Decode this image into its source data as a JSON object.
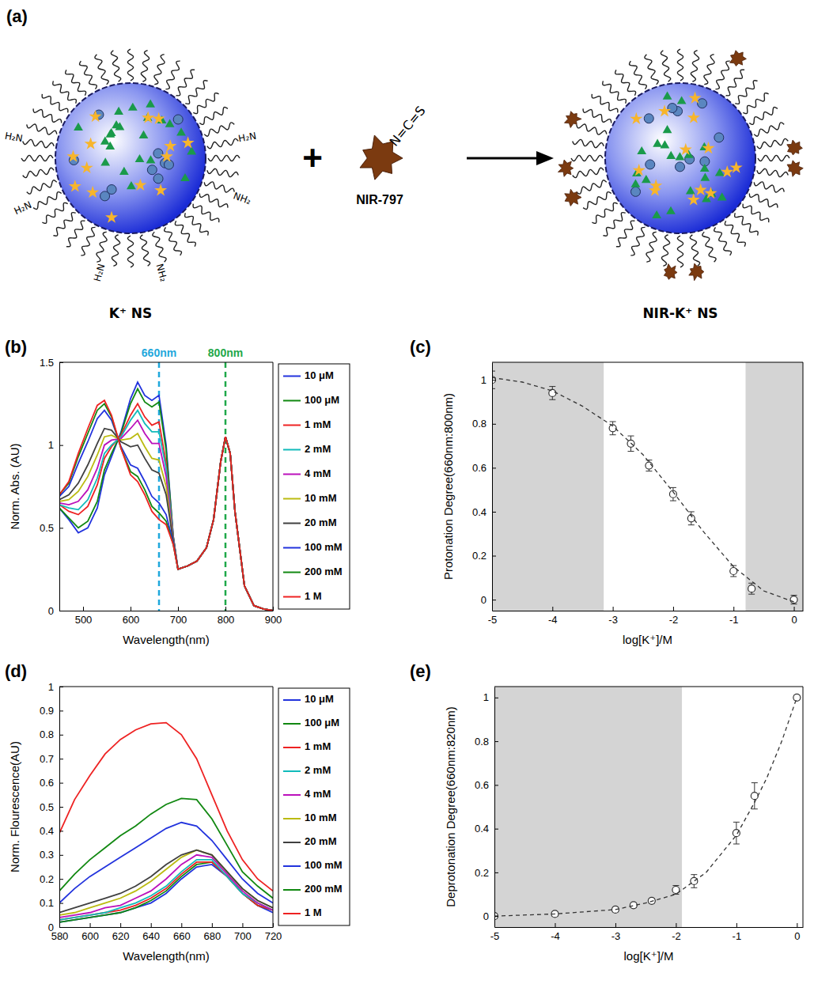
{
  "diagram": {
    "panel_label": "(a)",
    "left_label": "K⁺ NS",
    "right_label": "NIR-K⁺ NS",
    "dye_label": "NIR-797",
    "dye_group": "N=C=S",
    "plus": "+",
    "amine_labels": [
      "H₂N",
      "H₂N",
      "H₂N",
      "NH₂",
      "H₂N",
      "NH₂"
    ]
  },
  "chart_data": [
    {
      "type": "line",
      "title": "(b)",
      "xlabel": "Wavelength(nm)",
      "ylabel": "Norm. Abs. (AU)",
      "legend": "right",
      "x": [
        450,
        470,
        490,
        510,
        530,
        545,
        560,
        580,
        600,
        615,
        630,
        645,
        660,
        675,
        690,
        700,
        720,
        740,
        760,
        775,
        790,
        800,
        810,
        820,
        840,
        860,
        880,
        900
      ],
      "xlim": [
        450,
        900
      ],
      "xticks": [
        500,
        600,
        700,
        800,
        900
      ],
      "ylim": [
        0,
        1.5
      ],
      "yticks": [
        0,
        0.5,
        1,
        1.5
      ],
      "annotations": [
        {
          "x": 660,
          "label": "660nm",
          "color": "#1fa8dc"
        },
        {
          "x": 800,
          "label": "800nm",
          "color": "#1fa84a"
        }
      ],
      "series": [
        {
          "name": "10 μM",
          "color": "#2233dd",
          "values": [
            0.62,
            0.55,
            0.47,
            0.5,
            0.62,
            0.82,
            0.93,
            1.08,
            1.28,
            1.38,
            1.3,
            1.27,
            1.3,
            1,
            0.45,
            0.25,
            0.27,
            0.3,
            0.38,
            0.55,
            0.9,
            1.05,
            0.95,
            0.6,
            0.15,
            0.03,
            0.01,
            0
          ]
        },
        {
          "name": "100 μM",
          "color": "#118811",
          "values": [
            0.62,
            0.56,
            0.5,
            0.54,
            0.66,
            0.85,
            0.95,
            1.07,
            1.25,
            1.34,
            1.26,
            1.23,
            1.26,
            0.97,
            0.45,
            0.25,
            0.27,
            0.3,
            0.38,
            0.55,
            0.9,
            1.05,
            0.95,
            0.6,
            0.15,
            0.03,
            0.01,
            0
          ]
        },
        {
          "name": "1 mM",
          "color": "#ee2222",
          "values": [
            0.64,
            0.6,
            0.58,
            0.63,
            0.76,
            0.92,
            0.99,
            1.06,
            1.18,
            1.25,
            1.17,
            1.12,
            1.14,
            0.89,
            0.44,
            0.25,
            0.27,
            0.3,
            0.38,
            0.55,
            0.9,
            1.05,
            0.95,
            0.6,
            0.15,
            0.03,
            0.01,
            0
          ]
        },
        {
          "name": "2 mM",
          "color": "#11bbbb",
          "values": [
            0.64,
            0.62,
            0.61,
            0.67,
            0.8,
            0.95,
            1,
            1.05,
            1.15,
            1.21,
            1.13,
            1.08,
            1.08,
            0.86,
            0.44,
            0.25,
            0.27,
            0.3,
            0.38,
            0.55,
            0.9,
            1.05,
            0.95,
            0.6,
            0.15,
            0.03,
            0.01,
            0
          ]
        },
        {
          "name": "4 mM",
          "color": "#bb11bb",
          "values": [
            0.65,
            0.64,
            0.66,
            0.73,
            0.86,
            1,
            1.03,
            1.04,
            1.1,
            1.15,
            1.07,
            1.01,
            1.01,
            0.81,
            0.43,
            0.25,
            0.27,
            0.3,
            0.38,
            0.55,
            0.9,
            1.05,
            0.95,
            0.6,
            0.15,
            0.03,
            0.01,
            0
          ]
        },
        {
          "name": "10 mM",
          "color": "#bbbb11",
          "values": [
            0.66,
            0.67,
            0.72,
            0.81,
            0.94,
            1.05,
            1.06,
            1.03,
            1.04,
            1.07,
            0.99,
            0.92,
            0.91,
            0.75,
            0.42,
            0.25,
            0.27,
            0.3,
            0.38,
            0.55,
            0.9,
            1.05,
            0.95,
            0.6,
            0.15,
            0.03,
            0.01,
            0
          ]
        },
        {
          "name": "20 mM",
          "color": "#404040",
          "values": [
            0.67,
            0.7,
            0.77,
            0.88,
            1.01,
            1.1,
            1.09,
            1.02,
            0.99,
            1,
            0.92,
            0.85,
            0.83,
            0.7,
            0.42,
            0.25,
            0.27,
            0.3,
            0.38,
            0.55,
            0.9,
            1.05,
            0.95,
            0.6,
            0.15,
            0.03,
            0.01,
            0
          ]
        },
        {
          "name": "100 mM",
          "color": "#2233dd",
          "values": [
            0.69,
            0.75,
            0.89,
            1.02,
            1.16,
            1.21,
            1.15,
            0.99,
            0.88,
            0.86,
            0.78,
            0.69,
            0.65,
            0.58,
            0.41,
            0.25,
            0.27,
            0.3,
            0.38,
            0.55,
            0.9,
            1.05,
            0.95,
            0.6,
            0.15,
            0.03,
            0.01,
            0
          ]
        },
        {
          "name": "200 mM",
          "color": "#118811",
          "values": [
            0.7,
            0.77,
            0.93,
            1.07,
            1.21,
            1.25,
            1.17,
            0.98,
            0.84,
            0.81,
            0.73,
            0.63,
            0.59,
            0.54,
            0.4,
            0.25,
            0.27,
            0.3,
            0.38,
            0.55,
            0.9,
            1.05,
            0.95,
            0.6,
            0.15,
            0.03,
            0.01,
            0
          ]
        },
        {
          "name": "1 M",
          "color": "#ee2222",
          "values": [
            0.7,
            0.78,
            0.95,
            1.1,
            1.24,
            1.27,
            1.18,
            0.98,
            0.82,
            0.78,
            0.7,
            0.6,
            0.55,
            0.52,
            0.4,
            0.25,
            0.27,
            0.3,
            0.38,
            0.55,
            0.9,
            1.05,
            0.95,
            0.6,
            0.15,
            0.03,
            0.01,
            0
          ]
        }
      ]
    },
    {
      "type": "scatter",
      "title": "(c)",
      "xlabel": "log[K⁺]/M",
      "ylabel": "Protonation Degree(660nm:800nm)",
      "x": [
        -5,
        -4,
        -3,
        -2.7,
        -2.4,
        -2,
        -1.7,
        -1,
        -0.7,
        0
      ],
      "xlim": [
        -5,
        0.15
      ],
      "xticks": [
        -5,
        -4,
        -3,
        -2,
        -1,
        0
      ],
      "ylim": [
        -0.05,
        1.08
      ],
      "yticks": [
        0,
        0.2,
        0.4,
        0.6,
        0.8,
        1
      ],
      "shaded_regions": [
        [
          -5,
          -3.15
        ],
        [
          -0.8,
          0.15
        ]
      ],
      "series": [
        {
          "type": "scatter",
          "marker": "circle",
          "color": "#333333",
          "values": [
            1,
            0.94,
            0.78,
            0.71,
            0.61,
            0.48,
            0.37,
            0.13,
            0.05,
            0
          ],
          "errors": [
            0.04,
            0.03,
            0.03,
            0.035,
            0.025,
            0.03,
            0.03,
            0.025,
            0.025,
            0.02
          ]
        },
        {
          "type": "line",
          "line_style": "dashed",
          "color": "#333333",
          "x": [
            -5,
            -4.5,
            -4,
            -3.5,
            -3,
            -2.5,
            -2,
            -1.5,
            -1,
            -0.5,
            0
          ],
          "values": [
            1.01,
            0.99,
            0.95,
            0.88,
            0.79,
            0.66,
            0.49,
            0.31,
            0.15,
            0.04,
            -0.01
          ]
        }
      ]
    },
    {
      "type": "line",
      "title": "(d)",
      "xlabel": "Wavelength(nm)",
      "ylabel": "Norm. Flourescence(AU)",
      "legend": "right",
      "x": [
        580,
        590,
        600,
        610,
        620,
        630,
        640,
        650,
        660,
        670,
        680,
        690,
        700,
        710,
        720
      ],
      "xlim": [
        580,
        720
      ],
      "xticks": [
        580,
        600,
        620,
        640,
        660,
        680,
        700,
        720
      ],
      "ylim": [
        0,
        1
      ],
      "yticks": [
        0,
        0.1,
        0.2,
        0.3,
        0.4,
        0.5,
        0.6,
        0.7,
        0.8,
        0.9,
        1
      ],
      "series": [
        {
          "name": "10 μM",
          "color": "#2233dd",
          "values": [
            0.02,
            0.03,
            0.04,
            0.05,
            0.06,
            0.08,
            0.1,
            0.14,
            0.2,
            0.25,
            0.26,
            0.21,
            0.14,
            0.09,
            0.06
          ]
        },
        {
          "name": "100 μM",
          "color": "#118811",
          "values": [
            0.02,
            0.03,
            0.04,
            0.05,
            0.06,
            0.08,
            0.11,
            0.15,
            0.21,
            0.26,
            0.27,
            0.21,
            0.14,
            0.09,
            0.07
          ]
        },
        {
          "name": "1 mM",
          "color": "#ee2222",
          "values": [
            0.03,
            0.04,
            0.05,
            0.06,
            0.07,
            0.09,
            0.12,
            0.16,
            0.22,
            0.27,
            0.27,
            0.21,
            0.14,
            0.09,
            0.07
          ]
        },
        {
          "name": "2 mM",
          "color": "#11bbbb",
          "values": [
            0.03,
            0.04,
            0.05,
            0.06,
            0.08,
            0.1,
            0.13,
            0.17,
            0.23,
            0.28,
            0.28,
            0.21,
            0.14,
            0.1,
            0.07
          ]
        },
        {
          "name": "4 mM",
          "color": "#bb11bb",
          "values": [
            0.04,
            0.05,
            0.06,
            0.08,
            0.09,
            0.12,
            0.15,
            0.2,
            0.26,
            0.3,
            0.29,
            0.22,
            0.15,
            0.1,
            0.07
          ]
        },
        {
          "name": "10 mM",
          "color": "#bbbb11",
          "values": [
            0.05,
            0.06,
            0.08,
            0.1,
            0.12,
            0.15,
            0.19,
            0.24,
            0.29,
            0.32,
            0.3,
            0.23,
            0.16,
            0.11,
            0.08
          ]
        },
        {
          "name": "20 mM",
          "color": "#404040",
          "values": [
            0.06,
            0.08,
            0.1,
            0.12,
            0.14,
            0.17,
            0.21,
            0.26,
            0.3,
            0.32,
            0.3,
            0.23,
            0.16,
            0.11,
            0.08
          ]
        },
        {
          "name": "100 mM",
          "color": "#2233dd",
          "values": [
            0.1,
            0.16,
            0.21,
            0.25,
            0.29,
            0.33,
            0.37,
            0.41,
            0.435,
            0.42,
            0.36,
            0.28,
            0.2,
            0.14,
            0.1
          ]
        },
        {
          "name": "200 mM",
          "color": "#118811",
          "values": [
            0.15,
            0.22,
            0.28,
            0.33,
            0.38,
            0.42,
            0.47,
            0.51,
            0.535,
            0.53,
            0.45,
            0.34,
            0.23,
            0.17,
            0.12
          ]
        },
        {
          "name": "1 M",
          "color": "#ee2222",
          "values": [
            0.39,
            0.53,
            0.63,
            0.72,
            0.78,
            0.82,
            0.845,
            0.85,
            0.8,
            0.7,
            0.55,
            0.4,
            0.28,
            0.2,
            0.15
          ]
        }
      ]
    },
    {
      "type": "scatter",
      "title": "(e)",
      "xlabel": "log[K⁺]/M",
      "ylabel": "Deprotonation Degree(660nm:820nm)",
      "x": [
        -5,
        -4,
        -3,
        -2.7,
        -2.4,
        -2,
        -1.7,
        -1,
        -0.7,
        0
      ],
      "xlim": [
        -5,
        0.1
      ],
      "xticks": [
        -5,
        -4,
        -3,
        -2,
        -1,
        0
      ],
      "ylim": [
        -0.05,
        1.05
      ],
      "yticks": [
        0,
        0.2,
        0.4,
        0.6,
        0.8,
        1
      ],
      "shaded_regions": [
        [
          -5,
          -1.9
        ]
      ],
      "series": [
        {
          "type": "scatter",
          "marker": "circle",
          "color": "#333333",
          "values": [
            0,
            0.01,
            0.03,
            0.05,
            0.07,
            0.12,
            0.16,
            0.38,
            0.55,
            1
          ],
          "errors": [
            0.01,
            0.01,
            0.01,
            0.01,
            0.01,
            0.02,
            0.03,
            0.05,
            0.06,
            0.01
          ]
        },
        {
          "type": "line",
          "line_style": "dashed",
          "color": "#333333",
          "x": [
            -5,
            -4,
            -3,
            -2.5,
            -2,
            -1.5,
            -1,
            -0.7,
            -0.5,
            -0.25,
            0
          ],
          "values": [
            0,
            0.01,
            0.03,
            0.06,
            0.1,
            0.2,
            0.37,
            0.52,
            0.63,
            0.8,
            1
          ]
        }
      ]
    }
  ]
}
